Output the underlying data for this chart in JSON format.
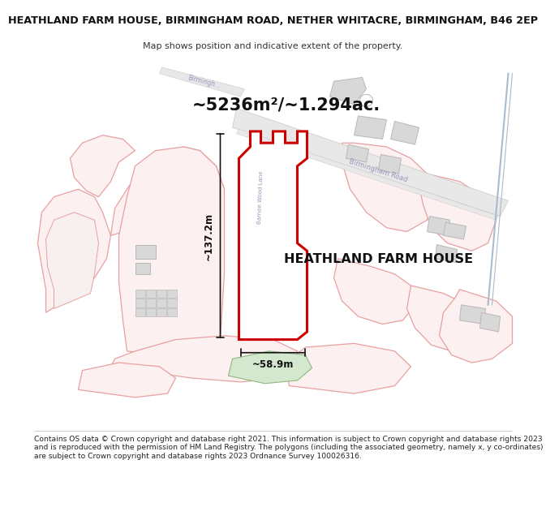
{
  "title_line1": "HEATHLAND FARM HOUSE, BIRMINGHAM ROAD, NETHER WHITACRE, BIRMINGHAM, B46 2EP",
  "title_line2": "Map shows position and indicative extent of the property.",
  "area_text": "~5236m²/~1.294ac.",
  "property_label": "HEATHLAND FARM HOUSE",
  "dim_height": "~137.2m",
  "dim_width": "~58.9m",
  "footer_text": "Contains OS data © Crown copyright and database right 2021. This information is subject to Crown copyright and database rights 2023 and is reproduced with the permission of HM Land Registry. The polygons (including the associated geometry, namely x, y co-ordinates) are subject to Crown copyright and database rights 2023 Ordnance Survey 100026316.",
  "bg_color": "#ffffff",
  "map_bg": "#ffffff",
  "property_fill": "#ffffff",
  "property_edge": "#cc0000",
  "pink_outline": "#e8a0a0",
  "pink_fill": "#fdf0f0",
  "gray_building": "#d8d8d8",
  "gray_building_edge": "#b8b8b8",
  "road_fill": "#e8e8e8",
  "road_edge": "#c8c8c8",
  "blue_line": "#aabbcc",
  "road_label_color": "#9999bb",
  "dim_line_color": "#111111",
  "green_fill": "#d4e8d0",
  "green_edge": "#90b880"
}
